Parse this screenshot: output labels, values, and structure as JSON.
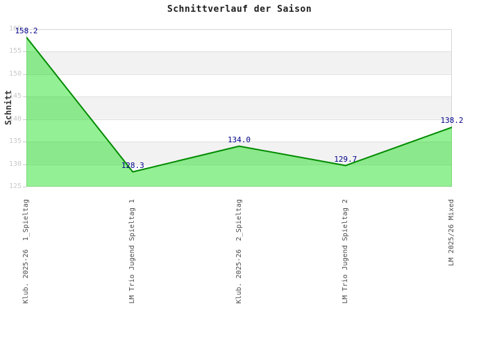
{
  "title": "Schnittverlauf der Saison",
  "chart_data": {
    "type": "area",
    "title": "Schnittverlauf der Saison",
    "ylabel": "Schnitt",
    "xlabel": "",
    "categories": [
      "Klub. 2025-26  1_Spieltag",
      "LM Trio Jugend Spieltag 1",
      "Klub. 2025-26  2_Spieltag",
      "LM Trio Jugend Spieltag 2",
      "LM 2025/26 Mixed"
    ],
    "values": [
      158.2,
      128.3,
      134.0,
      129.7,
      138.2
    ],
    "point_labels": [
      "158.2",
      "128.3",
      "134.0",
      "129.7",
      "138.2"
    ],
    "ylim": [
      125,
      160
    ],
    "ytick_step": 5,
    "ytick_labels": [
      "160",
      "155",
      "150",
      "145",
      "140",
      "135",
      "130",
      "125"
    ],
    "grid": "horizontal",
    "legend": "none",
    "colors": {
      "area_fill": "#00dc00",
      "area_fill_opacity": 0.42,
      "line": "#008b00",
      "point_label": "#00008b",
      "band_even": "#ffffff",
      "band_odd": "#f2f2f2",
      "gridline": "#e0e0e0",
      "plot_border": "#d6d6d6",
      "ytick_text": "#c9c9c9",
      "xtick_text": "#4d4d4d",
      "title_text": "#1c1c1c"
    }
  }
}
